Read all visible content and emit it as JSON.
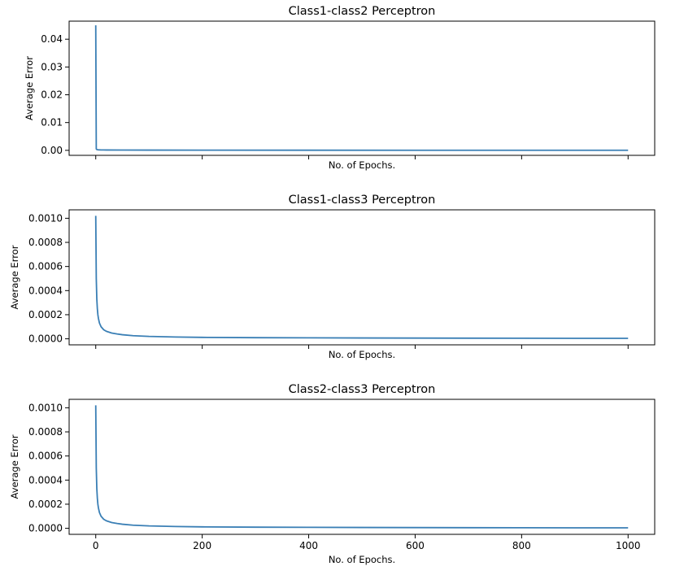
{
  "chart_data": [
    {
      "type": "line",
      "title": "Class1-class2 Perceptron",
      "xlabel": "No. of Epochs.",
      "ylabel": "Average Error",
      "xlim": [
        -50,
        1050
      ],
      "ylim": [
        -0.0018,
        0.0465
      ],
      "xticks": [
        0,
        200,
        400,
        600,
        800,
        1000
      ],
      "xtick_labels_visible": false,
      "yticks": [
        0.0,
        0.01,
        0.02,
        0.03,
        0.04
      ],
      "ytick_labels": [
        "0.00",
        "0.01",
        "0.02",
        "0.03",
        "0.04"
      ],
      "series": [
        {
          "color": "#3a7fb5",
          "x": [
            0,
            1,
            2,
            3,
            5,
            10,
            20,
            50,
            100,
            200,
            400,
            600,
            800,
            1000
          ],
          "y": [
            0.045,
            0.0005,
            0.0003,
            0.00025,
            0.0002,
            0.00015,
            0.00012,
            0.0001,
            8e-05,
            6e-05,
            4e-05,
            3e-05,
            2e-05,
            2e-05
          ]
        }
      ]
    },
    {
      "type": "line",
      "title": "Class1-class3 Perceptron",
      "xlabel": "No. of Epochs.",
      "ylabel": "Average Error",
      "xlim": [
        -50,
        1050
      ],
      "ylim": [
        -5e-05,
        0.00107
      ],
      "xticks": [
        0,
        200,
        400,
        600,
        800,
        1000
      ],
      "xtick_labels_visible": false,
      "yticks": [
        0.0,
        0.0002,
        0.0004,
        0.0006,
        0.0008,
        0.001
      ],
      "ytick_labels": [
        "0.0000",
        "0.0002",
        "0.0004",
        "0.0006",
        "0.0008",
        "0.0010"
      ],
      "series": [
        {
          "color": "#3a7fb5",
          "x": [
            0,
            1,
            2,
            3,
            4,
            5,
            7,
            10,
            15,
            20,
            30,
            40,
            50,
            70,
            100,
            150,
            200,
            300,
            400,
            500,
            600,
            700,
            800,
            900,
            1000
          ],
          "y": [
            0.00102,
            0.0005,
            0.00033,
            0.00025,
            0.0002,
            0.00017,
            0.00013,
            0.0001,
            7.5e-05,
            6.2e-05,
            4.8e-05,
            4e-05,
            3.4e-05,
            2.6e-05,
            2e-05,
            1.5e-05,
            1.2e-05,
            9.5e-06,
            8e-06,
            6.8e-06,
            6e-06,
            5.2e-06,
            4.6e-06,
            4.2e-06,
            3.8e-06
          ]
        }
      ]
    },
    {
      "type": "line",
      "title": "Class2-class3 Perceptron",
      "xlabel": "No. of Epochs.",
      "ylabel": "Average Error",
      "xlim": [
        -50,
        1050
      ],
      "ylim": [
        -5e-05,
        0.00107
      ],
      "xticks": [
        0,
        200,
        400,
        600,
        800,
        1000
      ],
      "xtick_labels": [
        "0",
        "200",
        "400",
        "600",
        "800",
        "1000"
      ],
      "xtick_labels_visible": true,
      "yticks": [
        0.0,
        0.0002,
        0.0004,
        0.0006,
        0.0008,
        0.001
      ],
      "ytick_labels": [
        "0.0000",
        "0.0002",
        "0.0004",
        "0.0006",
        "0.0008",
        "0.0010"
      ],
      "series": [
        {
          "color": "#3a7fb5",
          "x": [
            0,
            1,
            2,
            3,
            4,
            5,
            7,
            10,
            15,
            20,
            30,
            40,
            50,
            70,
            100,
            150,
            200,
            300,
            400,
            500,
            600,
            700,
            800,
            900,
            1000
          ],
          "y": [
            0.00102,
            0.0005,
            0.00033,
            0.00025,
            0.0002,
            0.00017,
            0.00013,
            0.0001,
            7.5e-05,
            6.2e-05,
            4.8e-05,
            4e-05,
            3.4e-05,
            2.6e-05,
            2e-05,
            1.5e-05,
            1.2e-05,
            9.5e-06,
            8e-06,
            6.8e-06,
            6e-06,
            5.2e-06,
            4.6e-06,
            4.2e-06,
            3.8e-06
          ]
        }
      ]
    }
  ]
}
